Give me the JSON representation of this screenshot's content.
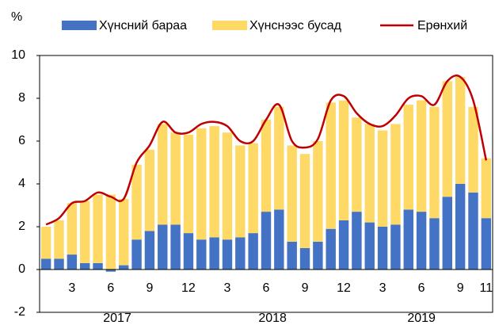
{
  "chart_data": {
    "type": "stacked_bar_line",
    "y_unit": "%",
    "categories": [
      null,
      null,
      "3",
      null,
      null,
      "6",
      null,
      null,
      "9",
      null,
      null,
      "12",
      null,
      null,
      "3",
      null,
      null,
      "6",
      null,
      null,
      "9",
      null,
      null,
      "12",
      null,
      null,
      "3",
      null,
      null,
      "6",
      null,
      null,
      "9",
      null,
      "11"
    ],
    "years": [
      "2017",
      "2018",
      "2019"
    ],
    "series": [
      {
        "name": "Хүнсний бараа",
        "color": "#4472c4",
        "kind": "bar",
        "values": [
          0.5,
          0.5,
          0.7,
          0.3,
          0.3,
          -0.1,
          0.2,
          1.4,
          1.8,
          2.1,
          2.1,
          1.7,
          1.4,
          1.5,
          1.4,
          1.5,
          1.7,
          2.7,
          2.8,
          1.3,
          1.0,
          1.3,
          1.9,
          2.3,
          2.7,
          2.2,
          2.0,
          2.1,
          2.8,
          2.7,
          2.4,
          3.4,
          4.0,
          3.6,
          2.4
        ]
      },
      {
        "name": "Хүнснээс бусад",
        "color": "#ffd966",
        "kind": "bar",
        "values": [
          1.5,
          1.8,
          2.4,
          2.9,
          3.2,
          3.5,
          3.1,
          3.5,
          3.8,
          4.7,
          4.3,
          4.6,
          5.2,
          5.2,
          5.0,
          4.3,
          4.2,
          4.3,
          4.8,
          4.5,
          4.4,
          4.7,
          5.9,
          5.6,
          4.4,
          4.6,
          4.5,
          4.7,
          4.9,
          5.2,
          5.2,
          5.4,
          5.0,
          4.0,
          2.8
        ]
      },
      {
        "name": "Ерөнхий",
        "color": "#c00000",
        "kind": "line",
        "values": [
          2.1,
          2.4,
          3.1,
          3.2,
          3.6,
          3.4,
          3.3,
          5.0,
          5.8,
          6.9,
          6.4,
          6.4,
          6.8,
          6.9,
          6.7,
          6.0,
          6.0,
          7.0,
          7.7,
          6.0,
          5.7,
          6.1,
          7.9,
          8.1,
          7.3,
          6.8,
          6.7,
          7.2,
          8.0,
          8.1,
          7.7,
          8.8,
          9.0,
          7.9,
          5.1
        ]
      }
    ],
    "ylim": [
      -2,
      10
    ],
    "yticks": [
      -2,
      0,
      2,
      4,
      6,
      8,
      10
    ]
  }
}
